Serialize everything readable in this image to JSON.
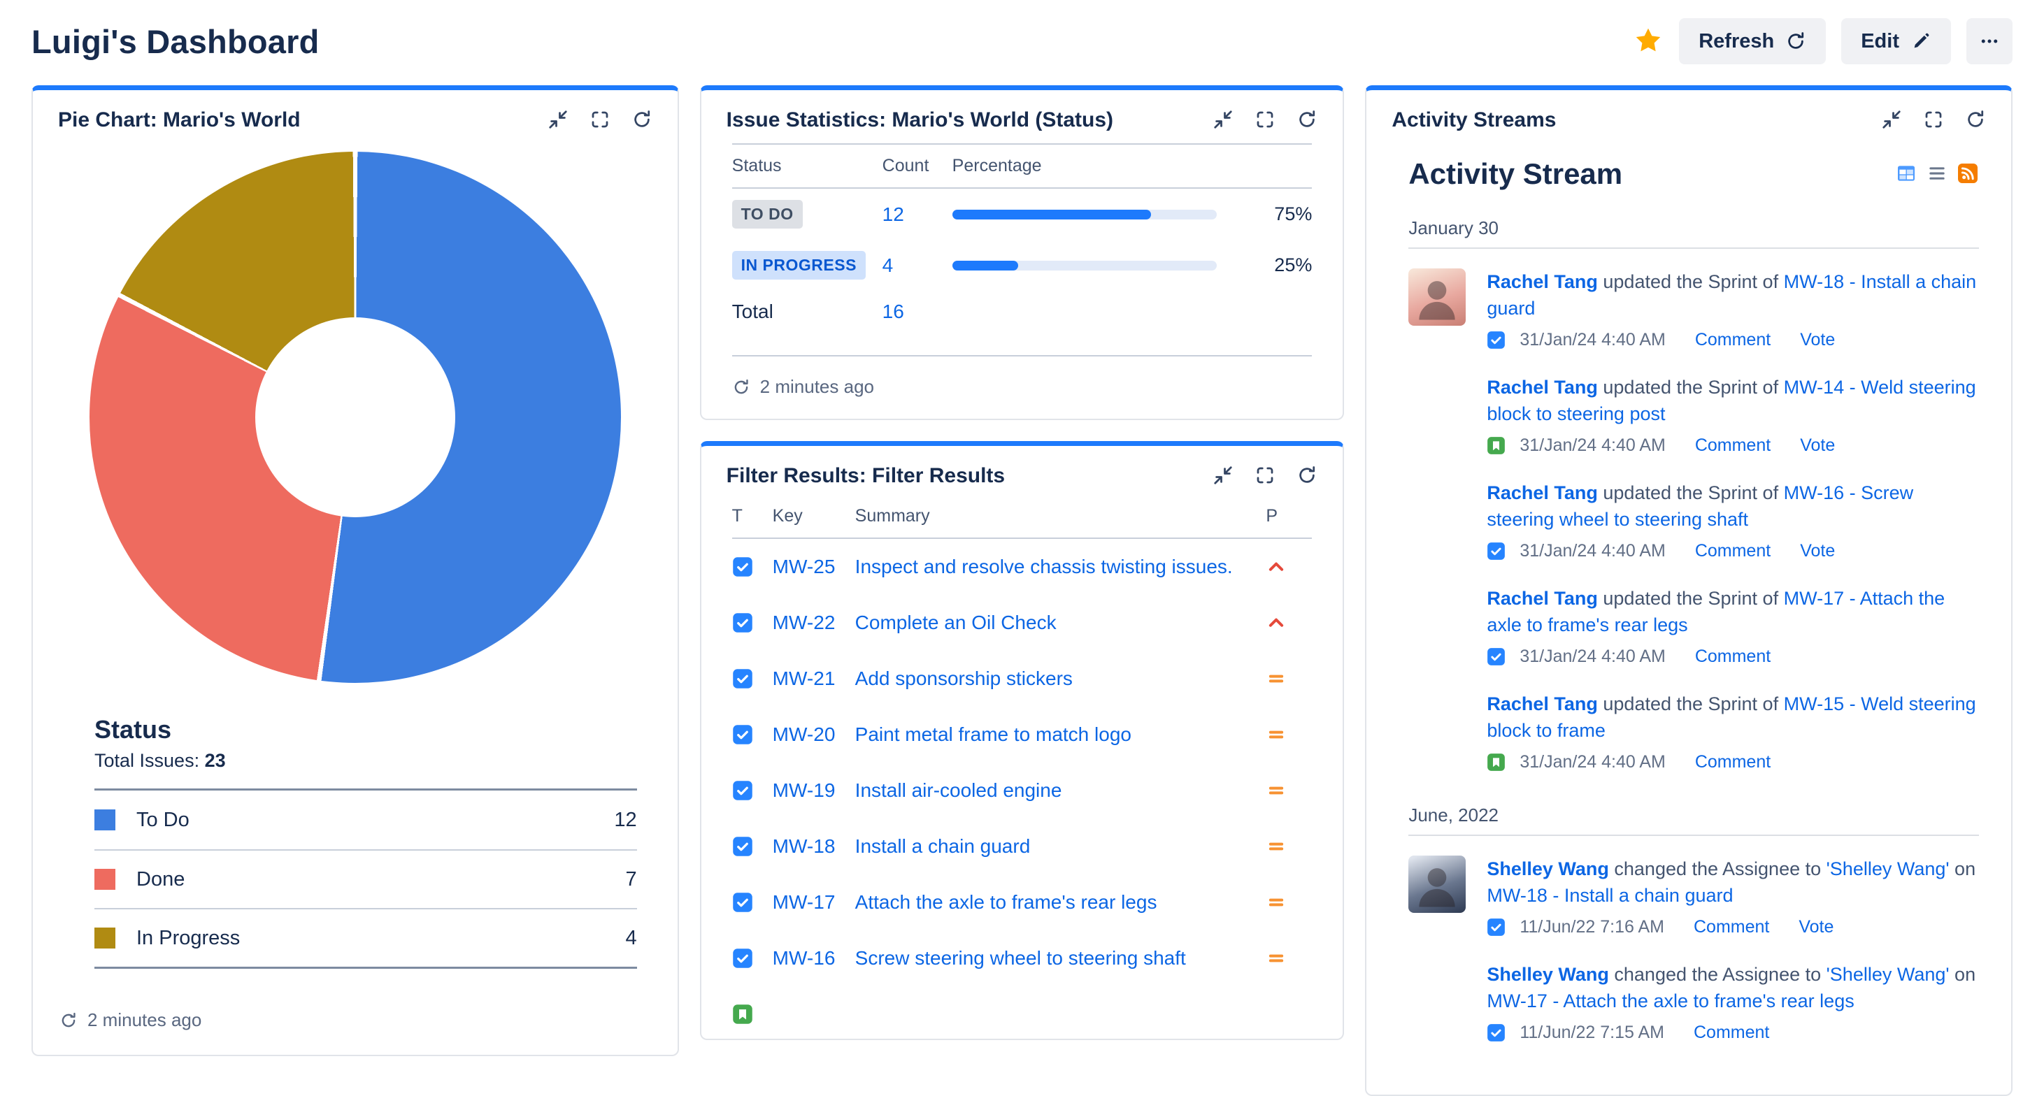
{
  "header": {
    "title": "Luigi's Dashboard",
    "refresh_label": "Refresh",
    "edit_label": "Edit"
  },
  "pie_gadget": {
    "title": "Pie Chart: Mario's World",
    "section_title": "Status",
    "total_label": "Total Issues:",
    "total_value": "23",
    "refreshed": "2 minutes ago"
  },
  "stats_gadget": {
    "title": "Issue Statistics: Mario's World (Status)",
    "columns": [
      "Status",
      "Count",
      "Percentage"
    ],
    "rows": [
      {
        "status": "TO DO",
        "style": "gray",
        "count": "12",
        "pct": 75,
        "pct_label": "75%"
      },
      {
        "status": "IN PROGRESS",
        "style": "blue",
        "count": "4",
        "pct": 25,
        "pct_label": "25%"
      }
    ],
    "total_label": "Total",
    "total_value": "16",
    "refreshed": "2 minutes ago"
  },
  "filter_gadget": {
    "title": "Filter Results: Filter Results",
    "columns": [
      "T",
      "Key",
      "Summary",
      "P"
    ],
    "rows": [
      {
        "type": "task",
        "key": "MW-25",
        "summary": "Inspect and resolve chassis twisting issues.",
        "priority": "highest"
      },
      {
        "type": "task",
        "key": "MW-22",
        "summary": "Complete an Oil Check",
        "priority": "highest"
      },
      {
        "type": "task",
        "key": "MW-21",
        "summary": "Add sponsorship stickers",
        "priority": "medium"
      },
      {
        "type": "task",
        "key": "MW-20",
        "summary": "Paint metal frame to match logo",
        "priority": "medium"
      },
      {
        "type": "task",
        "key": "MW-19",
        "summary": "Install air-cooled engine",
        "priority": "medium"
      },
      {
        "type": "task",
        "key": "MW-18",
        "summary": "Install a chain guard",
        "priority": "medium"
      },
      {
        "type": "task",
        "key": "MW-17",
        "summary": "Attach the axle to frame's rear legs",
        "priority": "medium"
      },
      {
        "type": "task",
        "key": "MW-16",
        "summary": "Screw steering wheel to steering shaft",
        "priority": "medium"
      },
      {
        "type": "story",
        "key": "",
        "summary": "",
        "priority": ""
      }
    ]
  },
  "activity_gadget": {
    "title": "Activity Streams",
    "heading": "Activity Stream",
    "groups": [
      {
        "date": "January 30",
        "items": [
          {
            "avatar": "RT",
            "user": "Rachel Tang",
            "action": "updated the Sprint of",
            "issue": "MW-18 - Install a chain guard",
            "type": "task",
            "time": "31/Jan/24 4:40 AM",
            "links": [
              "Comment",
              "Vote"
            ]
          },
          {
            "user": "Rachel Tang",
            "action": "updated the Sprint of",
            "issue": "MW-14 - Weld steering block to steering post",
            "type": "story",
            "time": "31/Jan/24 4:40 AM",
            "links": [
              "Comment",
              "Vote"
            ]
          },
          {
            "user": "Rachel Tang",
            "action": "updated the Sprint of",
            "issue": "MW-16 - Screw steering wheel to steering shaft",
            "type": "task",
            "time": "31/Jan/24 4:40 AM",
            "links": [
              "Comment",
              "Vote"
            ]
          },
          {
            "user": "Rachel Tang",
            "action": "updated the Sprint of",
            "issue": "MW-17 - Attach the axle to frame's rear legs",
            "type": "task",
            "time": "31/Jan/24 4:40 AM",
            "links": [
              "Comment"
            ]
          },
          {
            "user": "Rachel Tang",
            "action": "updated the Sprint of",
            "issue": "MW-15 - Weld steering block to frame",
            "type": "story",
            "time": "31/Jan/24 4:40 AM",
            "links": [
              "Comment"
            ]
          }
        ]
      },
      {
        "date": "June, 2022",
        "items": [
          {
            "avatar": "SW",
            "user": "Shelley Wang",
            "action": "changed the Assignee to",
            "target": "'Shelley Wang'",
            "suffix": "on",
            "issue": "MW-18 - Install a chain guard",
            "type": "task",
            "time": "11/Jun/22 7:16 AM",
            "links": [
              "Comment",
              "Vote"
            ]
          },
          {
            "user": "Shelley Wang",
            "action": "changed the Assignee to",
            "target": "'Shelley Wang'",
            "suffix": "on",
            "issue": "MW-17 - Attach the axle to frame's rear legs",
            "type": "task",
            "time": "11/Jun/22 7:15 AM",
            "links": [
              "Comment"
            ]
          }
        ]
      }
    ]
  },
  "chart_data": [
    {
      "type": "pie",
      "title": "Status",
      "labels": [
        "To Do",
        "Done",
        "In Progress"
      ],
      "values": [
        12,
        7,
        4
      ],
      "colors": [
        "#3C7EE0",
        "#EE6B5F",
        "#B08B12"
      ],
      "total": 23,
      "hole_ratio": 0.38,
      "legend_position": "below"
    },
    {
      "type": "bar",
      "title": "Issue Statistics: Mario's World (Status)",
      "categories": [
        "TO DO",
        "IN PROGRESS"
      ],
      "values": [
        75,
        25
      ],
      "counts": [
        12,
        4
      ],
      "total": 16,
      "xlabel": "Percentage",
      "xlim": [
        0,
        100
      ]
    }
  ],
  "colors": {
    "accent": "#1D7AFC",
    "link": "#0C66E4",
    "star": "#FFAB00",
    "bar_track": "#E2EAF8"
  }
}
